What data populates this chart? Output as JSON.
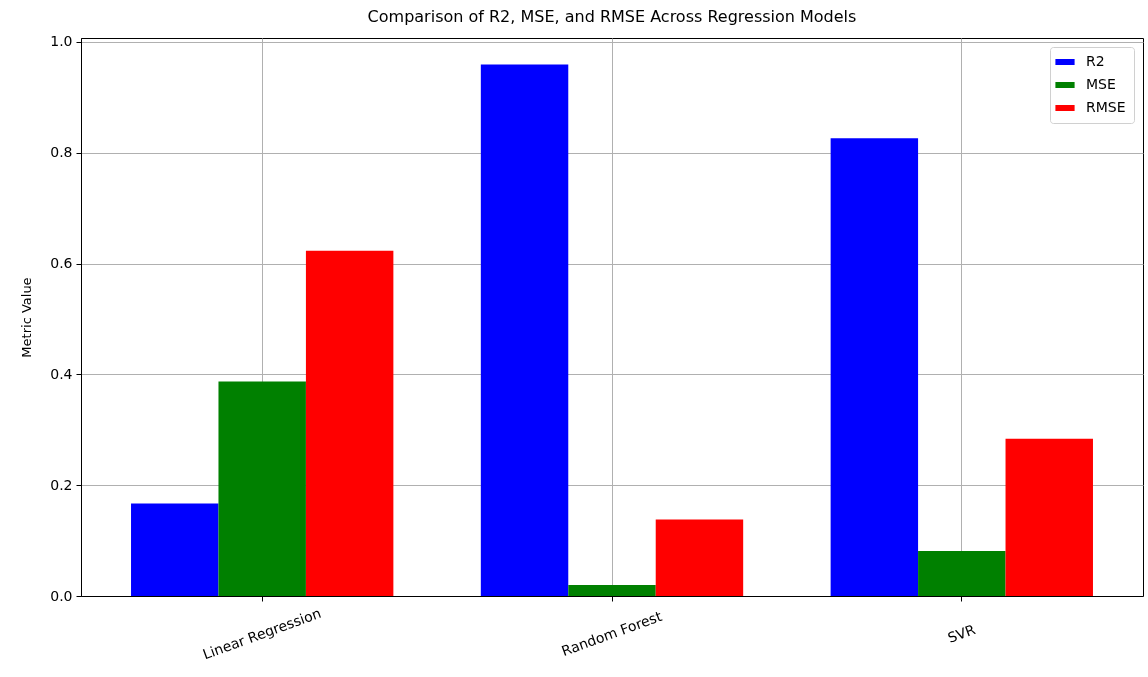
{
  "chart_data": {
    "type": "bar",
    "title": "Comparison of R2, MSE, and RMSE Across Regression Models",
    "ylabel": "Metric Value",
    "categories": [
      "Linear Regression",
      "Random Forest",
      "SVR"
    ],
    "series": [
      {
        "name": "R2",
        "color": "#0000ff",
        "values": [
          0.167,
          0.959,
          0.826
        ]
      },
      {
        "name": "MSE",
        "color": "#008000",
        "values": [
          0.387,
          0.02,
          0.081
        ]
      },
      {
        "name": "RMSE",
        "color": "#ff0000",
        "values": [
          0.623,
          0.138,
          0.284
        ]
      }
    ],
    "ylim": [
      0,
      1.007
    ],
    "yticks": [
      {
        "value": 0,
        "label": "0.0"
      },
      {
        "value": 0.2,
        "label": "0.2"
      },
      {
        "value": 0.4,
        "label": "0.4"
      },
      {
        "value": 0.6,
        "label": "0.6"
      },
      {
        "value": 0.8,
        "label": "0.8"
      },
      {
        "value": 1,
        "label": "1.0"
      }
    ],
    "grid": true,
    "legend": "top right"
  }
}
